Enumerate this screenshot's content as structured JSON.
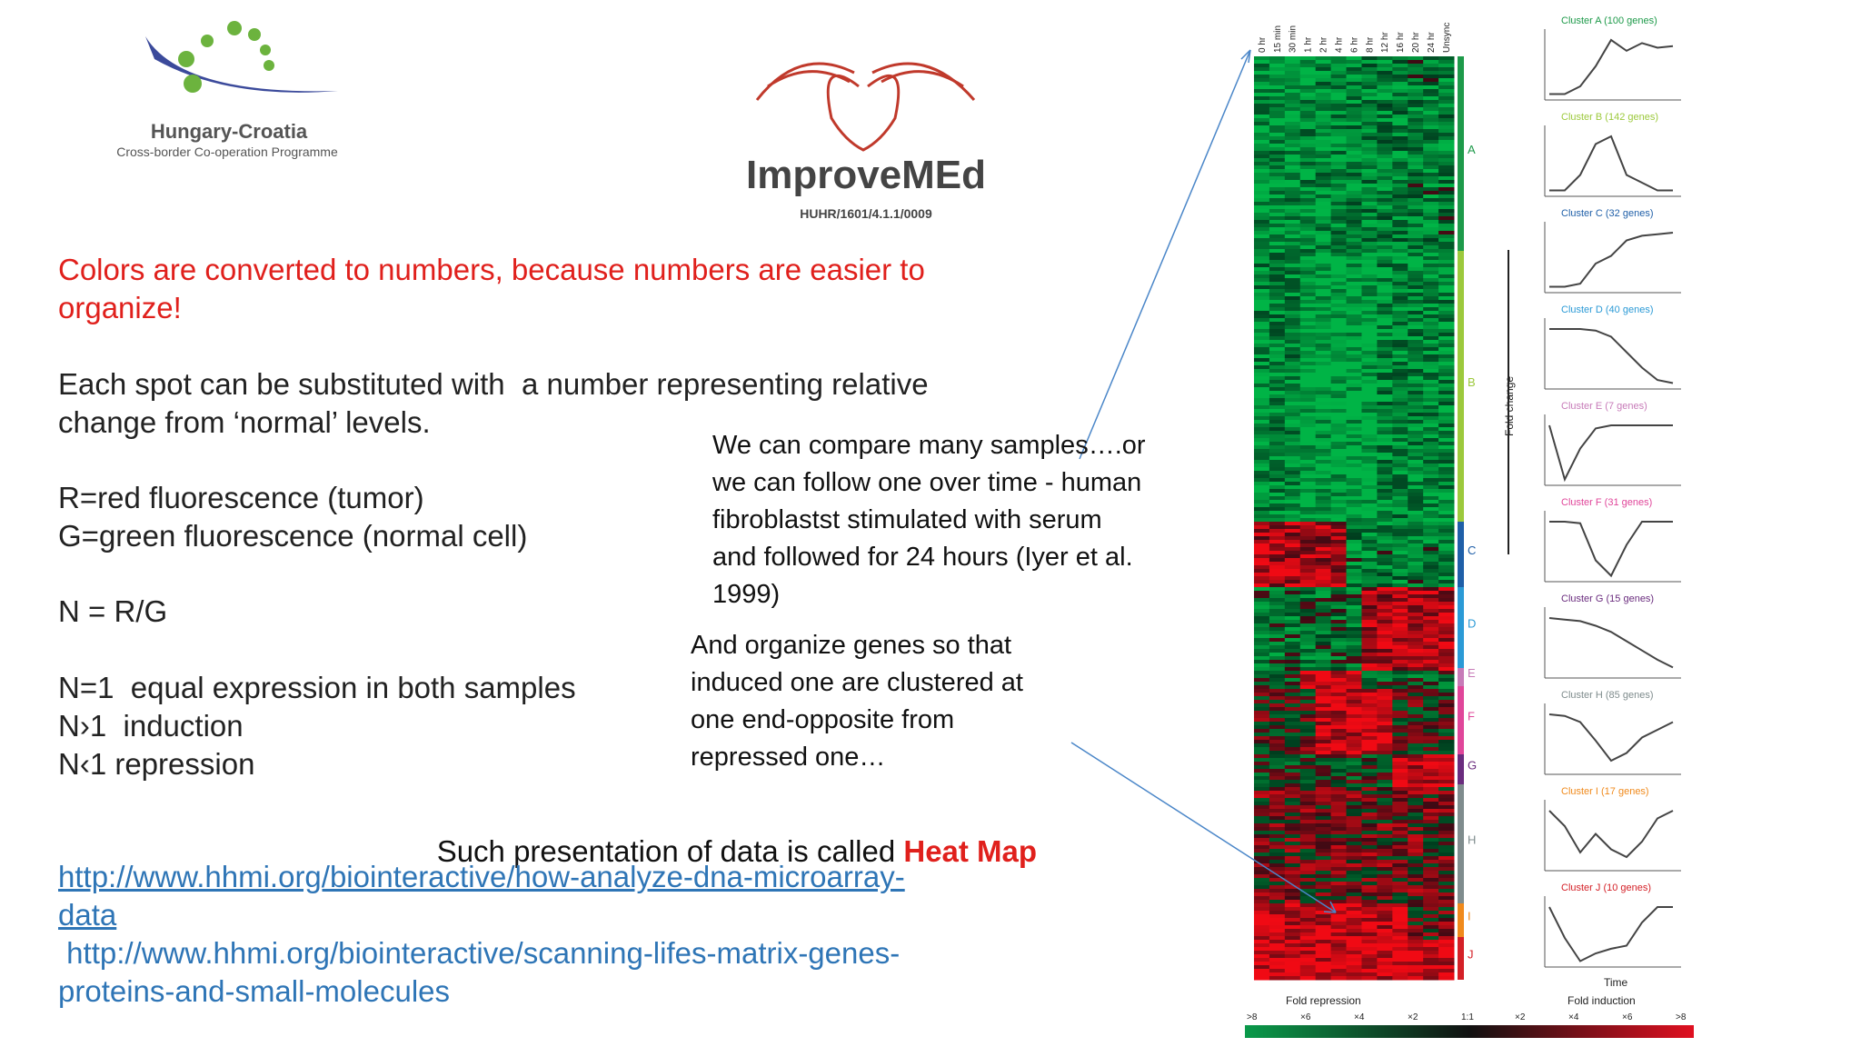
{
  "logos": {
    "programme": {
      "title": "Hungary-Croatia",
      "subtitle": "Cross-border Co-operation Programme"
    },
    "project": {
      "title": "ImproveMEd",
      "code": "HUHR/1601/4.1.1/0009"
    }
  },
  "intro": {
    "lines": [
      "Colors are converted to numbers, because numbers are easier to",
      "organize!"
    ]
  },
  "spot": {
    "lines": [
      "Each spot can be substituted with  a number representing relative",
      "change from ‘normal’ levels."
    ]
  },
  "legend": {
    "lines": [
      "R=red fluorescence (tumor)",
      "G=green fluorescence (normal cell)"
    ]
  },
  "formula": "N = R/G",
  "rules": {
    "lines": [
      "N=1  equal expression in both samples",
      "N›1  induction",
      "N‹1 repression"
    ]
  },
  "callout_time": {
    "lines": [
      "We can compare many samples….or",
      "we can follow one over time - human",
      "fibroblastst stimulated with serum",
      "and followed for 24 hours (Iyer et al.",
      "1999)"
    ]
  },
  "callout_cluster": {
    "lines": [
      "And organize genes so that",
      "induced one are clustered at",
      "one end-opposite from",
      "repressed one…"
    ]
  },
  "conclusion": {
    "text": "Such presentation of data is called",
    "highlight": "Heat Map"
  },
  "links": [
    {
      "lines": [
        "http://www.hhmi.org/biointeractive/how-analyze-dna-microarray-",
        "data"
      ]
    },
    {
      "lines": [
        " http://www.hhmi.org/biointeractive/scanning-lifes-matrix-genes-",
        "proteins-and-small-molecules"
      ]
    }
  ],
  "figure": {
    "time_points": [
      "0 hr",
      "15 min",
      "30 min",
      "1 hr",
      "2 hr",
      "4 hr",
      "6 hr",
      "8 hr",
      "12 hr",
      "16 hr",
      "20 hr",
      "24 hr",
      "Unsync"
    ],
    "clusters": [
      {
        "letter": "A",
        "name": "Cluster A (100 genes)",
        "color": "#1e9a4a"
      },
      {
        "letter": "B",
        "name": "Cluster B (142 genes)",
        "color": "#9cc93c"
      },
      {
        "letter": "C",
        "name": "Cluster C (32 genes)",
        "color": "#1f5fa8"
      },
      {
        "letter": "D",
        "name": "Cluster D (40 genes)",
        "color": "#2b9ad6"
      },
      {
        "letter": "E",
        "name": "Cluster E (7 genes)",
        "color": "#c77bb8"
      },
      {
        "letter": "F",
        "name": "Cluster F (31 genes)",
        "color": "#e0469a"
      },
      {
        "letter": "G",
        "name": "Cluster G (15 genes)",
        "color": "#6a2c7e"
      },
      {
        "letter": "H",
        "name": "Cluster H (85 genes)",
        "color": "#7f8c8d"
      },
      {
        "letter": "I",
        "name": "Cluster I (17 genes)",
        "color": "#f08a1c"
      },
      {
        "letter": "J",
        "name": "Cluster J (10 genes)",
        "color": "#d42027"
      }
    ],
    "y_axis": "Fold change",
    "x_axis": "Time",
    "repression": "Fold repression",
    "induction": "Fold induction",
    "scale": [
      ">8",
      "×6",
      "×4",
      "×2",
      "1:1",
      "×2",
      "×4",
      "×6",
      ">8"
    ]
  }
}
